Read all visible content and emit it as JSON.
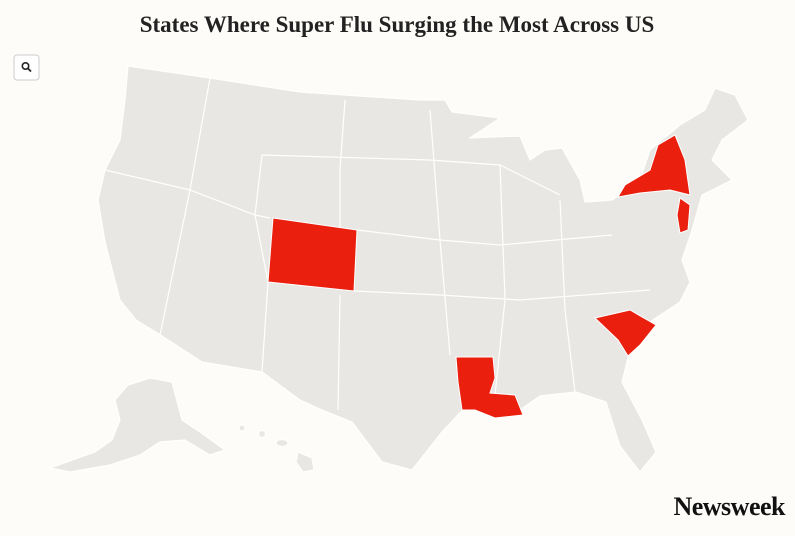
{
  "header": {
    "title": "States Where Super Flu Surging the Most Across US"
  },
  "footer": {
    "logo": "Newsweek"
  }
}
